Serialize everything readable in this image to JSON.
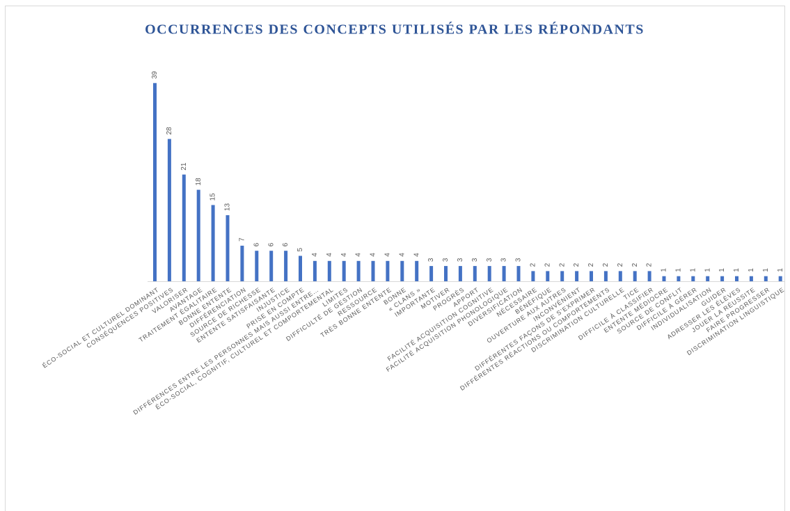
{
  "chart_data": {
    "type": "bar",
    "title": "OCCURRENCES DES CONCEPTS UTILISÉS PAR LES RÉPONDANTS",
    "categories": [
      "ÉCO-SOCIAL ET CULTUREL DOMINANT",
      "CONSÉQUENCES POSITIVES",
      "VALORISER",
      "AVANTAGE",
      "TRAITEMENT ÉGALITAIRE",
      "BONNE ENTENTE",
      "DIFFÉRENCIATION",
      "SOURCE DE RICHESSE",
      "ENTENTE SATISFAISANTE",
      "INJUSTICE",
      "PRISE EN COMPTE",
      "DIFFÉRENCES ENTRE LES PERSONNES MAIS AUSSI ENTRE…",
      "ÉCO-SOCIAL, COGNITIF, CULTUREL ET COMPORTEMENTAL",
      "LIMITES",
      "DIFFICULTÉ DE GESTION",
      "RESSOURCE",
      "TRÈS BONNE ENTENTE",
      "BONNE",
      "« CLANS »",
      "IMPORTANTE",
      "MOTIVER",
      "PROGRÈS",
      "APPORT",
      "FACILITÉ ACQUISITION COGNITIVE",
      "FACILITÉ ACQUISITION PHONOLOGIQUE",
      "DIVERSIFICATION",
      "NÉCESSAIRE",
      "BÉNÉFIQUE",
      "OUVERTURE AUX AUTRES",
      "INCONVÉNIENT",
      "DIFFÉRENTES FAÇONS DE S’EXPRIMER",
      "DIFFÉRENTES RÉACTIONS OU COMPORTEMENTS",
      "DISCRIMINATION CULTURELLE",
      "TICE",
      "DIFFICILE À CLASSIFIER",
      "ENTENTE MÉDIOCRE",
      "SOURCE DE CONFLIT",
      "DIFFICILE À GÉRER",
      "INDIVIDUALISATION",
      "GUIDER",
      "ADRESSER LES ÉLÈVES",
      "JOUER LA RÉUSSITE",
      "FAIRE PROGRESSER",
      "DISCRIMINATION LINGUISTIQUE"
    ],
    "values": [
      39,
      28,
      21,
      18,
      15,
      13,
      7,
      6,
      6,
      6,
      5,
      4,
      4,
      4,
      4,
      4,
      4,
      4,
      4,
      3,
      3,
      3,
      3,
      3,
      3,
      3,
      2,
      2,
      2,
      2,
      2,
      2,
      2,
      2,
      2,
      1,
      1,
      1,
      1,
      1,
      1,
      1,
      1,
      1
    ],
    "color": "#4472c4"
  }
}
